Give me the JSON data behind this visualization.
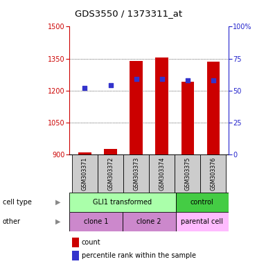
{
  "title": "GDS3550 / 1373311_at",
  "samples": [
    "GSM303371",
    "GSM303372",
    "GSM303373",
    "GSM303374",
    "GSM303375",
    "GSM303376"
  ],
  "counts": [
    910,
    925,
    1340,
    1355,
    1240,
    1335
  ],
  "percentile_ranks": [
    52,
    54,
    59,
    59,
    58,
    58
  ],
  "ylim_left": [
    900,
    1500
  ],
  "ylim_right": [
    0,
    100
  ],
  "yticks_left": [
    900,
    1050,
    1200,
    1350,
    1500
  ],
  "yticks_right": [
    0,
    25,
    50,
    75,
    100
  ],
  "bar_color": "#cc0000",
  "dot_color": "#3333cc",
  "cell_type_labels": [
    "GLI1 transformed",
    "control"
  ],
  "cell_type_color_gli": "#aaffaa",
  "cell_type_color_ctrl": "#44cc44",
  "other_labels": [
    "clone 1",
    "clone 2",
    "parental cell"
  ],
  "other_color_clone": "#cc88cc",
  "other_color_parental": "#ffbbff",
  "left_axis_color": "#cc0000",
  "right_axis_color": "#2222cc",
  "bg_color": "#ffffff",
  "bar_width": 0.5,
  "base_value": 900,
  "sample_bg": "#cccccc"
}
